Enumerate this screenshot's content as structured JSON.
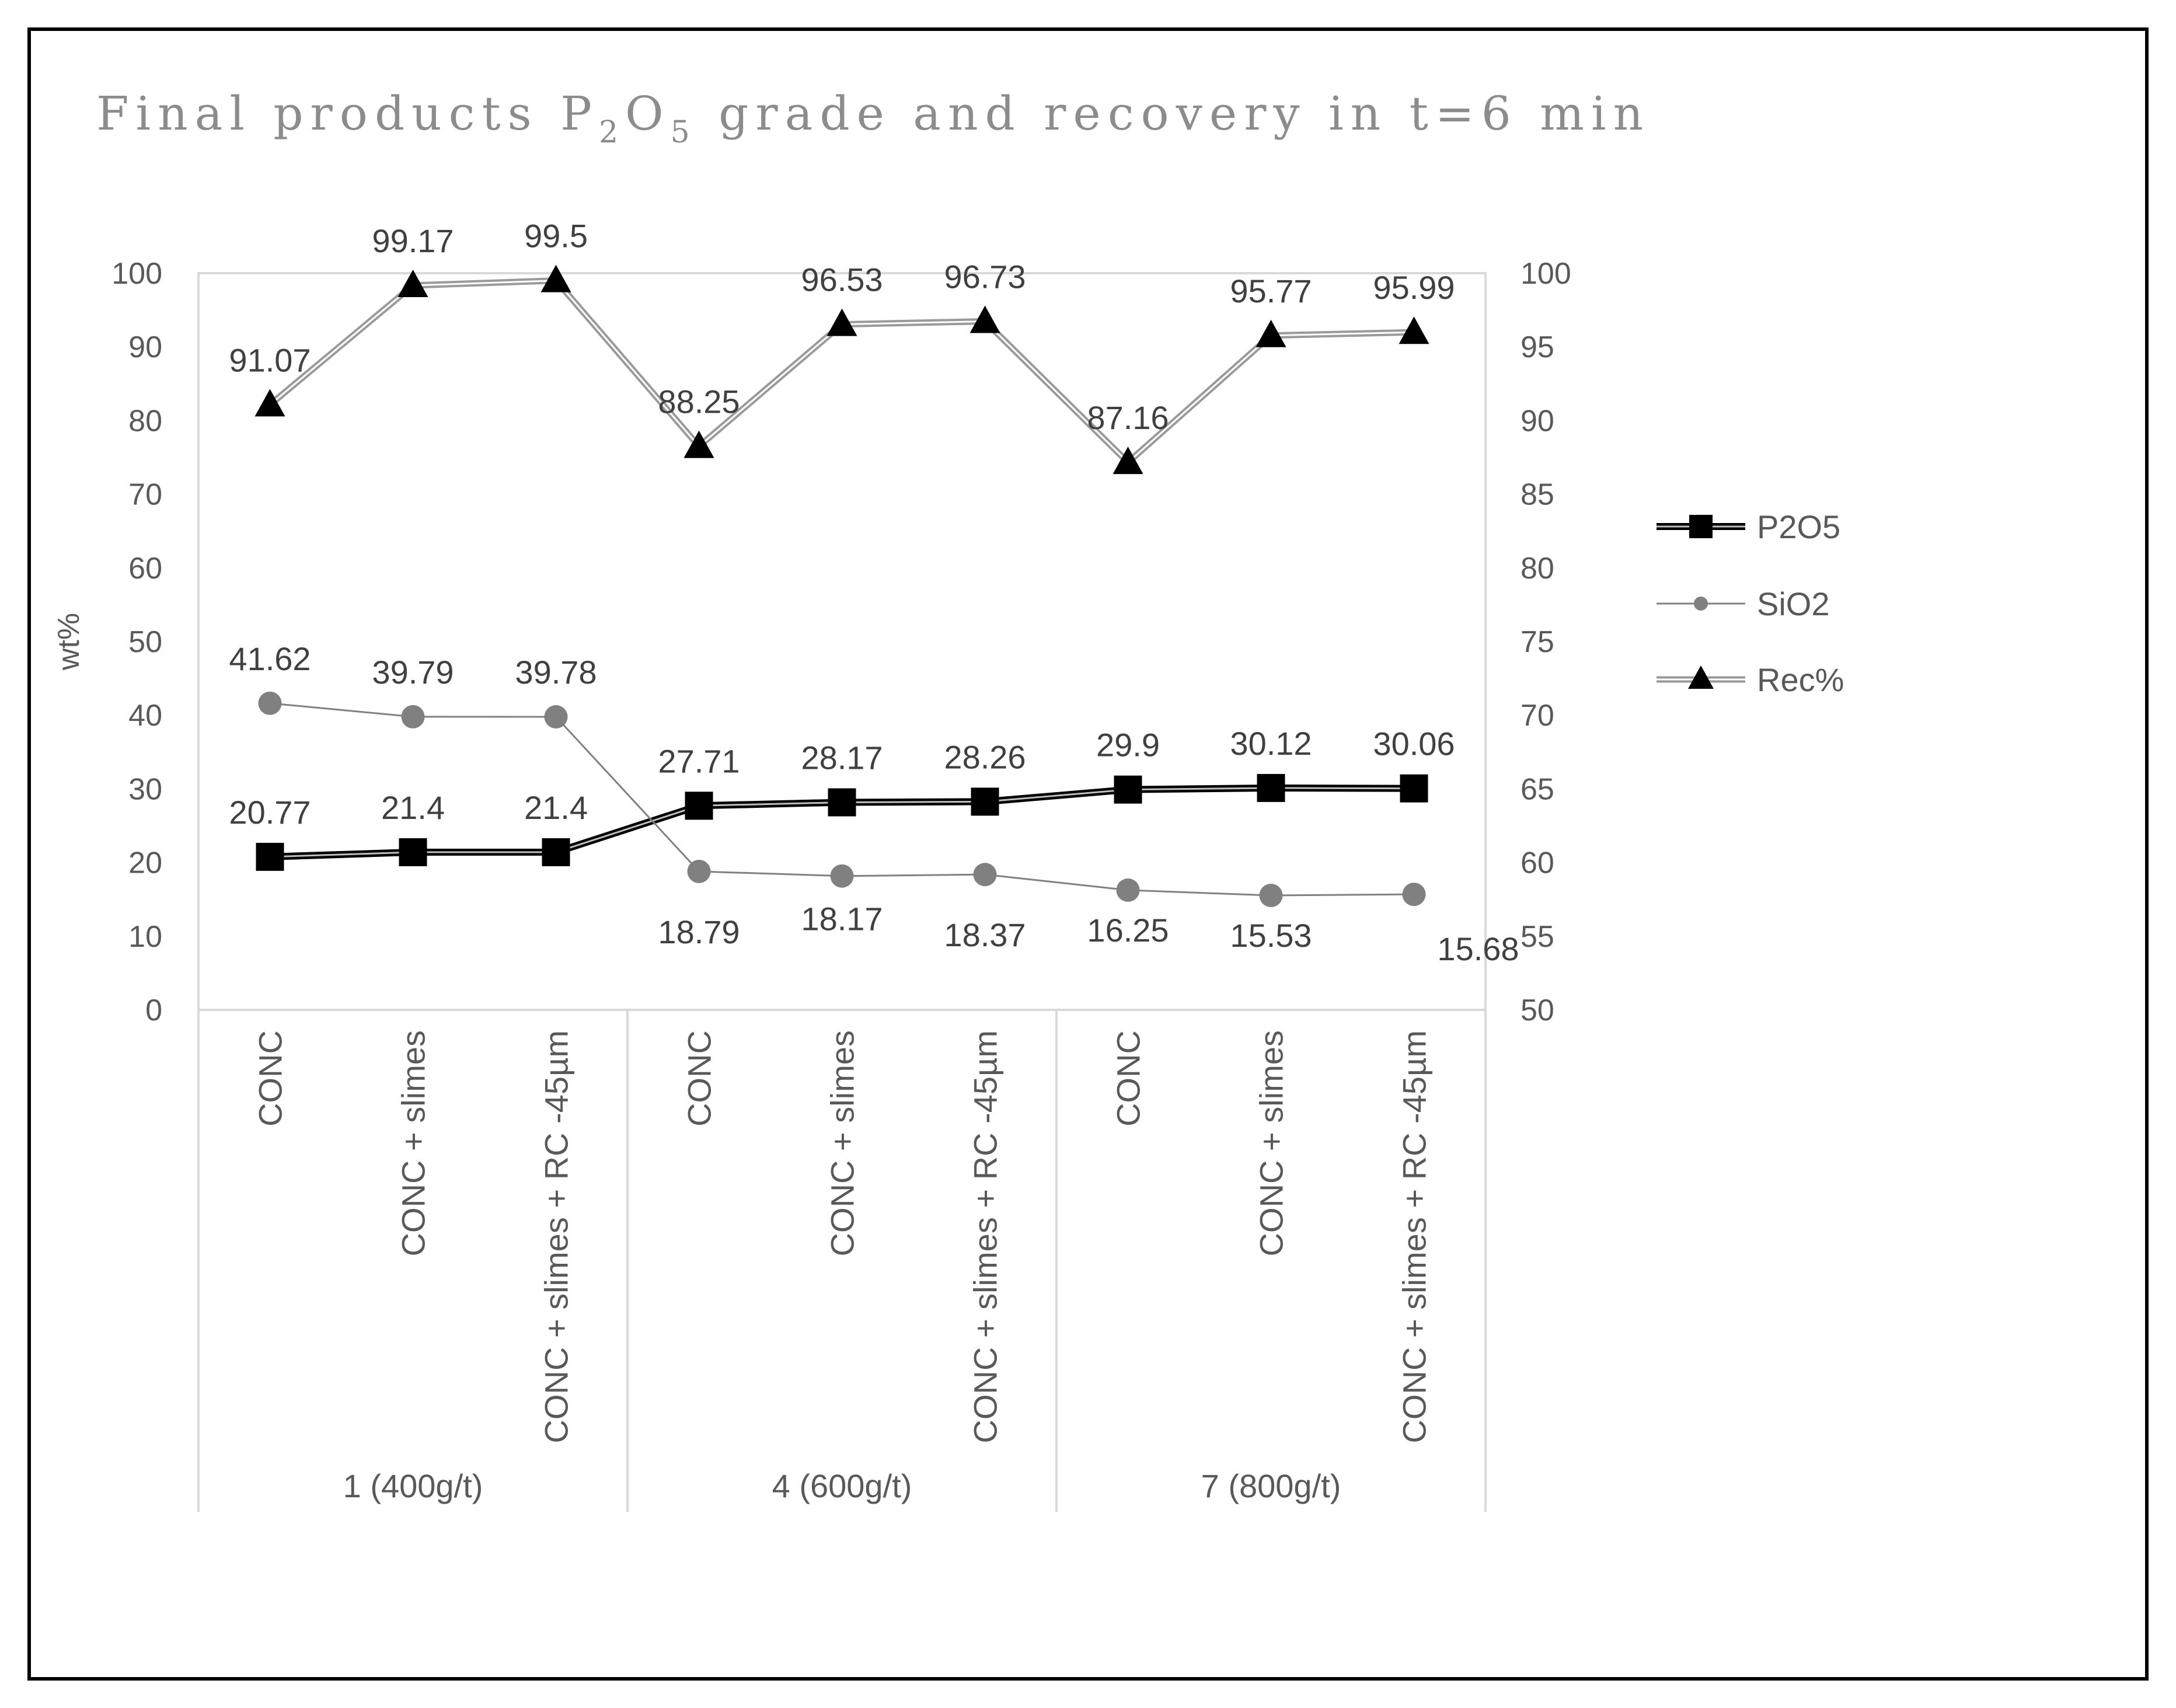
{
  "chart_data": {
    "type": "line",
    "title": {
      "prefix": "Final products P",
      "sub1": "2",
      "mid": "O",
      "sub2": "5",
      "suffix": " grade and recovery in t=6 min"
    },
    "ylabel": "wt%",
    "ylim_left": [
      0,
      100
    ],
    "ylim_right": [
      50,
      100
    ],
    "left_ticks": [
      "0",
      "10",
      "20",
      "30",
      "40",
      "50",
      "60",
      "70",
      "80",
      "90",
      "100"
    ],
    "right_ticks": [
      "50",
      "55",
      "60",
      "65",
      "70",
      "75",
      "80",
      "85",
      "90",
      "95",
      "100"
    ],
    "categories": [
      "CONC",
      "CONC + slimes",
      "CONC + slimes + RC -45µm",
      "CONC",
      "CONC + slimes",
      "CONC + slimes + RC -45µm",
      "CONC",
      "CONC + slimes",
      "CONC + slimes + RC -45µm"
    ],
    "groups": [
      "1 (400g/t)",
      "4 (600g/t)",
      "7 (800g/t)"
    ],
    "series": [
      {
        "name": "P2O5",
        "axis": "left",
        "marker": "square",
        "color": "#000000",
        "values": [
          20.77,
          21.4,
          21.4,
          27.71,
          28.17,
          28.26,
          29.9,
          30.12,
          30.06
        ],
        "labels": [
          "20.77",
          "21.4",
          "21.4",
          "27.71",
          "28.17",
          "28.26",
          "29.9",
          "30.12",
          "30.06"
        ]
      },
      {
        "name": "SiO2",
        "axis": "left",
        "marker": "circle",
        "color": "#808080",
        "values": [
          41.62,
          39.79,
          39.78,
          18.79,
          18.17,
          18.37,
          16.25,
          15.53,
          15.68
        ],
        "labels": [
          "41.62",
          "39.79",
          "39.78",
          "18.79",
          "18.17",
          "18.37",
          "16.25",
          "15.53",
          "15.68"
        ]
      },
      {
        "name": "Rec%",
        "axis": "right",
        "marker": "triangle",
        "color": "#000000",
        "values": [
          91.07,
          99.17,
          99.5,
          88.25,
          96.53,
          96.73,
          87.16,
          95.77,
          95.99
        ],
        "labels": [
          "91.07",
          "99.17",
          "99.5",
          "88.25",
          "96.53",
          "96.73",
          "87.16",
          "95.77",
          "95.99"
        ]
      }
    ],
    "legend": [
      "P2O5",
      "SiO2",
      "Rec%"
    ],
    "legend_position": "right"
  }
}
